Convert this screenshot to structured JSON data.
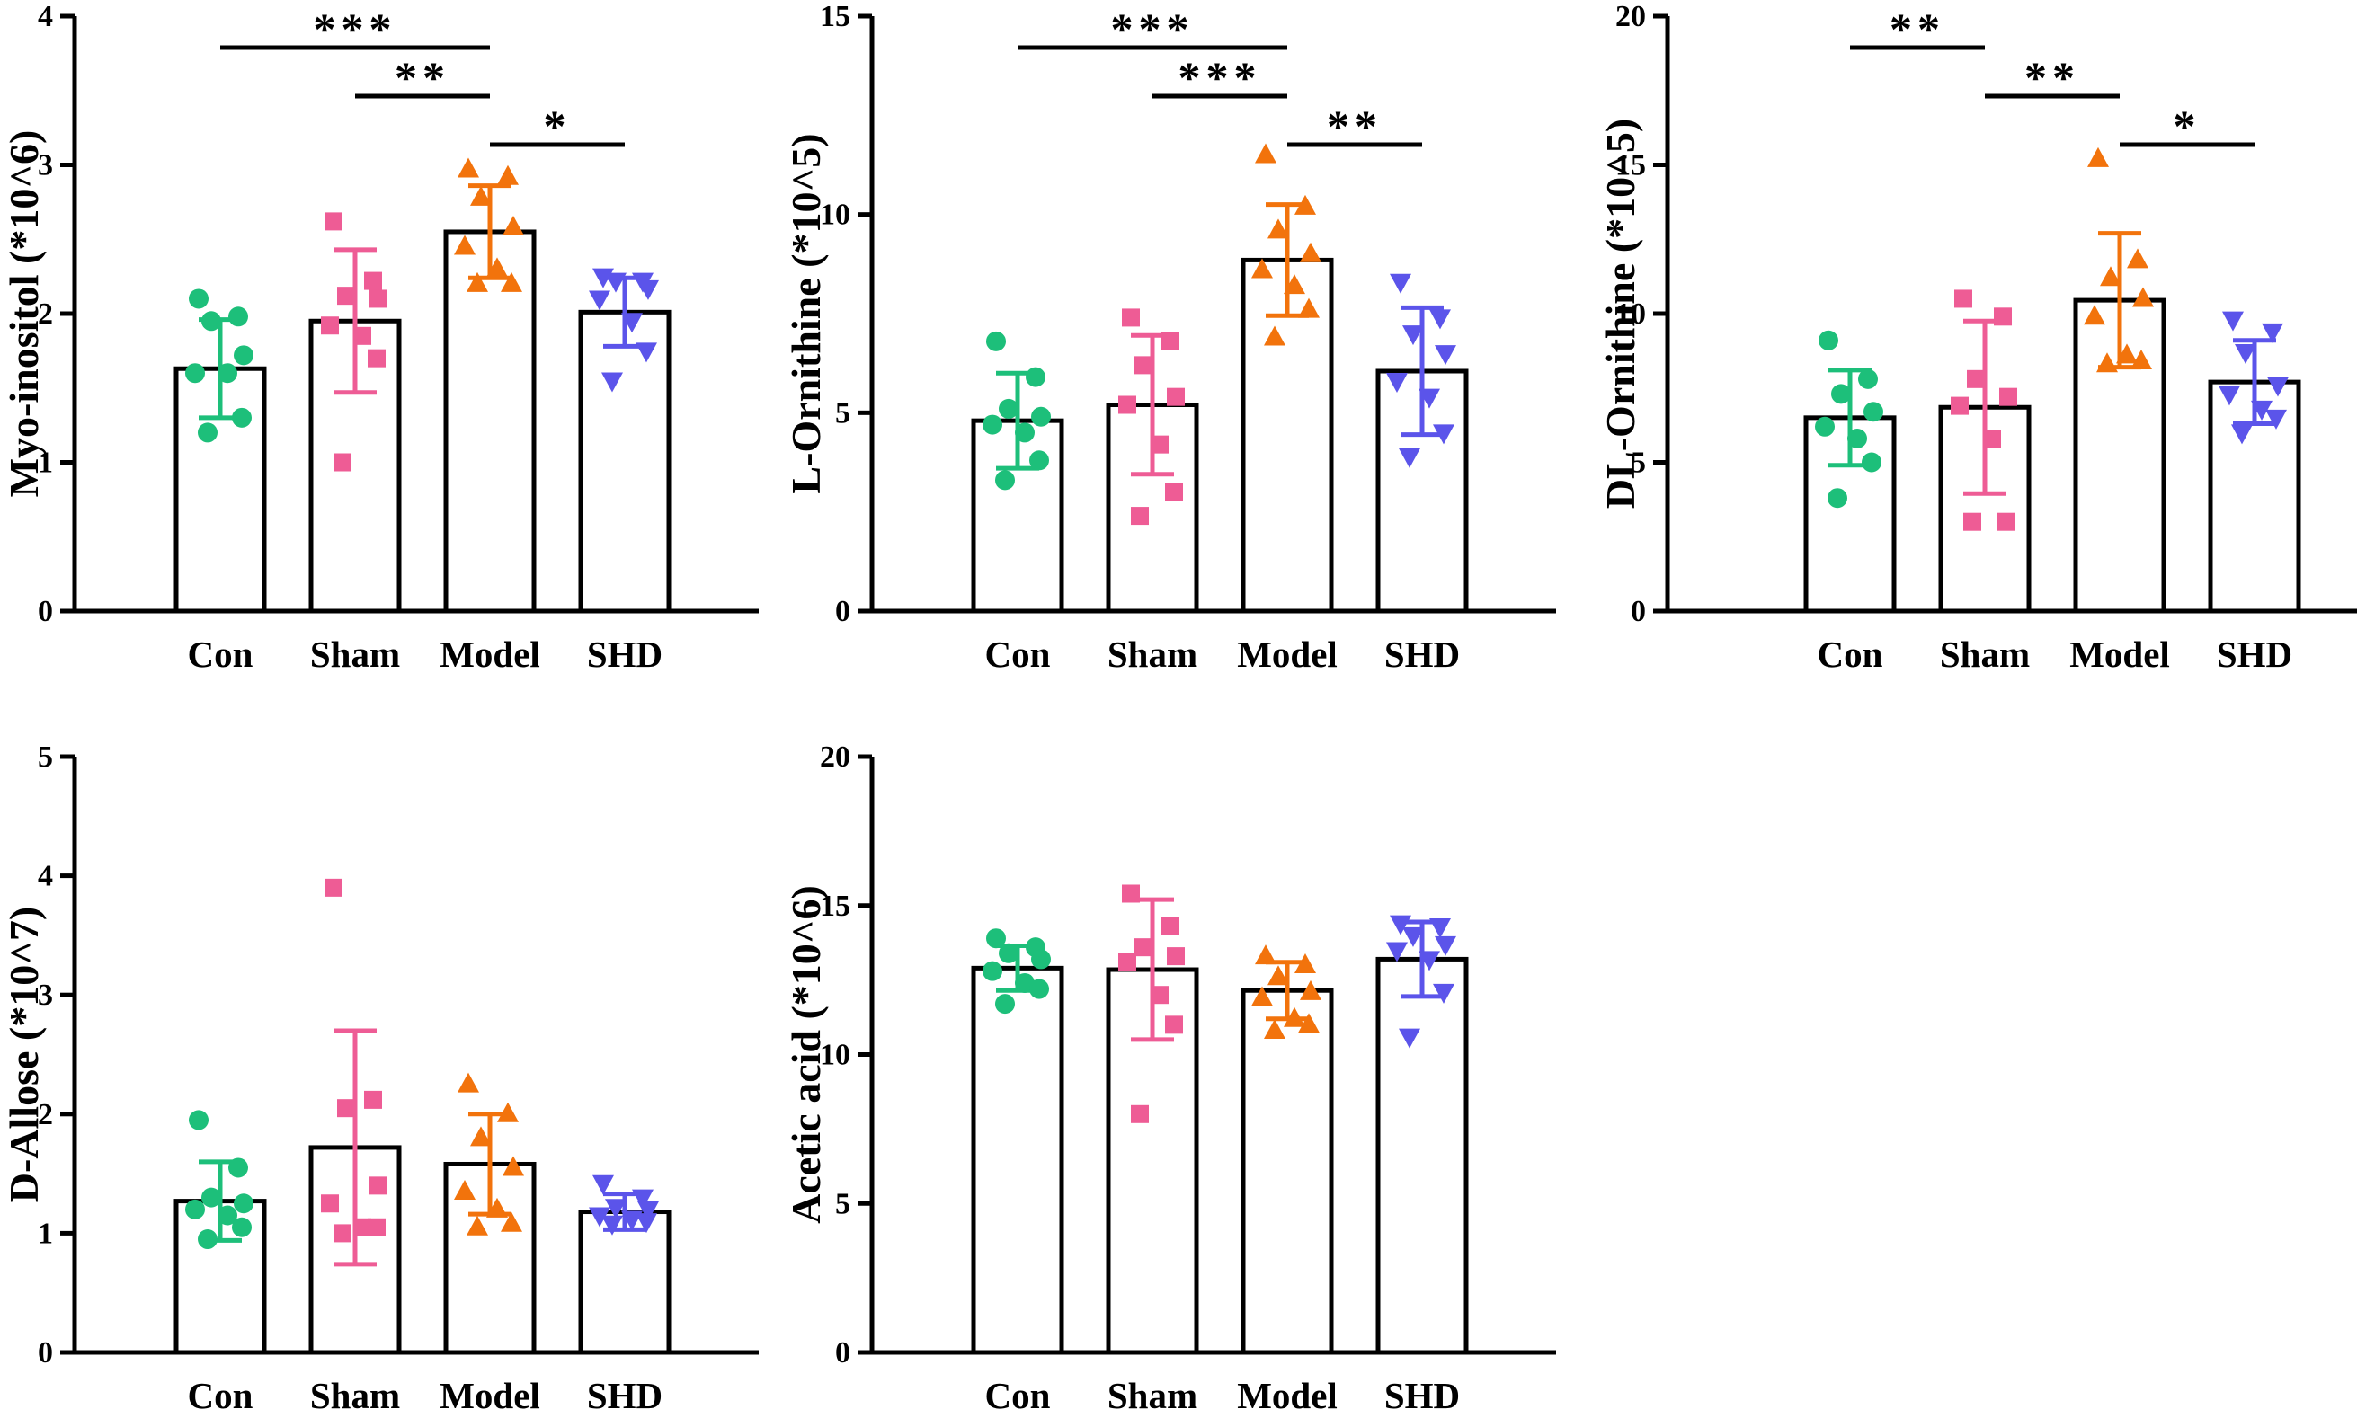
{
  "figure": {
    "groups": [
      "Con",
      "Sham",
      "Model",
      "SHD"
    ],
    "colors": {
      "Con": "#1dbf7a",
      "Sham": "#ee5c95",
      "Model": "#f2730c",
      "SHD": "#5b54ea"
    },
    "markers": {
      "Con": "circle",
      "Sham": "square",
      "Model": "triangle-up",
      "SHD": "triangle-down"
    }
  },
  "chart_data": [
    {
      "type": "bar",
      "ylabel": "Myo-inositol (*10^6)",
      "categories": [
        "Con",
        "Sham",
        "Model",
        "SHD"
      ],
      "ylim": [
        0,
        4
      ],
      "yticks": [
        0,
        1,
        2,
        3,
        4
      ],
      "values": [
        1.63,
        1.95,
        2.55,
        2.01
      ],
      "errors": [
        0.33,
        0.48,
        0.31,
        0.23
      ],
      "points": [
        [
          2.1,
          1.98,
          1.95,
          1.72,
          1.6,
          1.6,
          1.3,
          1.2
        ],
        [
          2.62,
          2.22,
          2.12,
          2.1,
          1.92,
          1.85,
          1.7,
          1.0
        ],
        [
          2.97,
          2.92,
          2.78,
          2.58,
          2.45,
          2.3,
          2.2,
          2.2
        ],
        [
          2.25,
          2.22,
          2.22,
          2.17,
          2.1,
          1.95,
          1.75,
          1.55
        ]
      ],
      "significance": [
        {
          "from": 0,
          "to": 2,
          "label": "***"
        },
        {
          "from": 1,
          "to": 2,
          "label": "**"
        },
        {
          "from": 2,
          "to": 3,
          "label": "*"
        }
      ]
    },
    {
      "type": "bar",
      "ylabel": "L-Ornithine (*10^5)",
      "categories": [
        "Con",
        "Sham",
        "Model",
        "SHD"
      ],
      "ylim": [
        0,
        15
      ],
      "yticks": [
        0,
        5,
        10,
        15
      ],
      "values": [
        4.8,
        5.2,
        8.85,
        6.05
      ],
      "errors": [
        1.2,
        1.75,
        1.4,
        1.6
      ],
      "points": [
        [
          6.8,
          5.9,
          5.1,
          4.9,
          4.7,
          4.5,
          3.8,
          3.3
        ],
        [
          7.4,
          6.8,
          6.2,
          5.4,
          5.2,
          4.2,
          3.0,
          2.4
        ],
        [
          11.5,
          10.2,
          9.6,
          9.0,
          8.6,
          8.2,
          7.6,
          6.9
        ],
        [
          8.3,
          7.4,
          7.0,
          6.5,
          5.8,
          5.4,
          4.5,
          3.9
        ]
      ],
      "significance": [
        {
          "from": 0,
          "to": 2,
          "label": "***"
        },
        {
          "from": 1,
          "to": 2,
          "label": "***"
        },
        {
          "from": 2,
          "to": 3,
          "label": "**"
        }
      ]
    },
    {
      "type": "bar",
      "ylabel": "DL-Ornithine (*10^5)",
      "categories": [
        "Con",
        "Sham",
        "Model",
        "SHD"
      ],
      "ylim": [
        0,
        20
      ],
      "yticks": [
        0,
        5,
        10,
        15,
        20
      ],
      "values": [
        6.5,
        6.85,
        10.45,
        7.7
      ],
      "errors": [
        1.6,
        2.9,
        2.25,
        1.4
      ],
      "points": [
        [
          9.1,
          7.8,
          7.3,
          6.7,
          6.2,
          5.8,
          5.0,
          3.8
        ],
        [
          10.5,
          9.9,
          7.8,
          7.2,
          6.9,
          5.8,
          3.0,
          3.0
        ],
        [
          15.2,
          11.8,
          11.2,
          10.5,
          9.9,
          8.6,
          8.4,
          8.3
        ],
        [
          9.8,
          9.4,
          8.7,
          7.6,
          7.3,
          6.8,
          6.5,
          6.0
        ]
      ],
      "significance": [
        {
          "from": 0,
          "to": 1,
          "label": "**"
        },
        {
          "from": 1,
          "to": 2,
          "label": "**"
        },
        {
          "from": 2,
          "to": 3,
          "label": "*"
        }
      ]
    },
    {
      "type": "bar",
      "ylabel": "D-Allose (*10^7)",
      "categories": [
        "Con",
        "Sham",
        "Model",
        "SHD"
      ],
      "ylim": [
        0,
        5
      ],
      "yticks": [
        0,
        1,
        2,
        3,
        4,
        5
      ],
      "values": [
        1.27,
        1.72,
        1.58,
        1.18
      ],
      "errors": [
        0.33,
        0.98,
        0.42,
        0.15
      ],
      "points": [
        [
          1.95,
          1.55,
          1.3,
          1.25,
          1.2,
          1.15,
          1.05,
          0.95
        ],
        [
          3.9,
          2.12,
          2.05,
          1.4,
          1.25,
          1.05,
          1.05,
          1.0
        ],
        [
          2.25,
          2.0,
          1.8,
          1.55,
          1.35,
          1.2,
          1.08,
          1.05
        ],
        [
          1.42,
          1.3,
          1.22,
          1.2,
          1.15,
          1.12,
          1.1,
          1.08
        ]
      ],
      "significance": []
    },
    {
      "type": "bar",
      "ylabel": "Acetic acid (*10^6)",
      "categories": [
        "Con",
        "Sham",
        "Model",
        "SHD"
      ],
      "ylim": [
        0,
        20
      ],
      "yticks": [
        0,
        5,
        10,
        15,
        20
      ],
      "values": [
        12.9,
        12.85,
        12.15,
        13.2
      ],
      "errors": [
        0.75,
        2.35,
        0.95,
        1.25
      ],
      "points": [
        [
          13.9,
          13.6,
          13.4,
          13.2,
          12.8,
          12.4,
          12.2,
          11.7
        ],
        [
          15.4,
          14.3,
          13.6,
          13.3,
          13.1,
          12.0,
          11.0,
          8.0
        ],
        [
          13.3,
          13.0,
          12.6,
          12.1,
          11.9,
          11.2,
          11.0,
          10.8
        ],
        [
          14.4,
          14.3,
          14.0,
          13.7,
          13.5,
          13.2,
          12.1,
          10.6
        ]
      ],
      "significance": []
    }
  ]
}
